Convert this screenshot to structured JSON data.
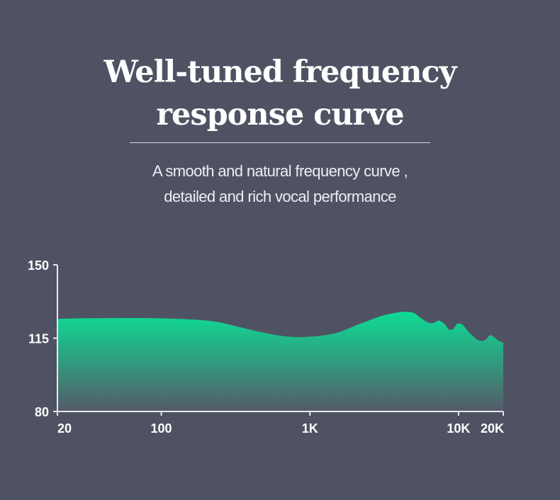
{
  "title_lines": [
    "Well-tuned frequency",
    "response curve"
  ],
  "subtitle_lines": [
    "A smooth and natural frequency curve ,",
    "detailed and rich vocal performance"
  ],
  "colors": {
    "background": "#4f5263",
    "curve_top": "#0ddc95",
    "curve_bottom": "#555a68",
    "axis": "#e6e8ee"
  },
  "chart_data": {
    "type": "area",
    "title": "",
    "xlabel": "",
    "ylabel": "",
    "x_scale": "log",
    "xlim": [
      20,
      20000
    ],
    "ylim": [
      80,
      150
    ],
    "x_ticks": [
      {
        "value": 20,
        "label": "20"
      },
      {
        "value": 100,
        "label": "100"
      },
      {
        "value": 1000,
        "label": "1K"
      },
      {
        "value": 10000,
        "label": "10K"
      },
      {
        "value": 20000,
        "label": "20K"
      }
    ],
    "y_ticks": [
      {
        "value": 80,
        "label": "80"
      },
      {
        "value": 115,
        "label": "115"
      },
      {
        "value": 150,
        "label": "150"
      }
    ],
    "grid": false,
    "legend": "none",
    "series": [
      {
        "x": [
          20,
          30,
          50,
          80,
          120,
          180,
          250,
          350,
          500,
          700,
          1000,
          1500,
          2200,
          3000,
          3700,
          4400,
          5000,
          5600,
          6300,
          6900,
          7400,
          8100,
          8600,
          9200,
          9800,
          10600,
          11500,
          12500,
          13700,
          15000,
          16200,
          17000,
          18000,
          19000,
          20000
        ],
        "y": [
          124.2,
          124.5,
          124.6,
          124.6,
          124.3,
          123.7,
          122.5,
          120.0,
          117.5,
          115.8,
          115.7,
          117.5,
          122.0,
          125.5,
          127.0,
          127.6,
          127.0,
          124.5,
          122.3,
          122.5,
          123.4,
          121.6,
          119.2,
          119.4,
          121.9,
          121.5,
          118.6,
          116.0,
          113.9,
          114.0,
          116.3,
          116.0,
          114.5,
          113.5,
          112.8
        ]
      }
    ]
  }
}
